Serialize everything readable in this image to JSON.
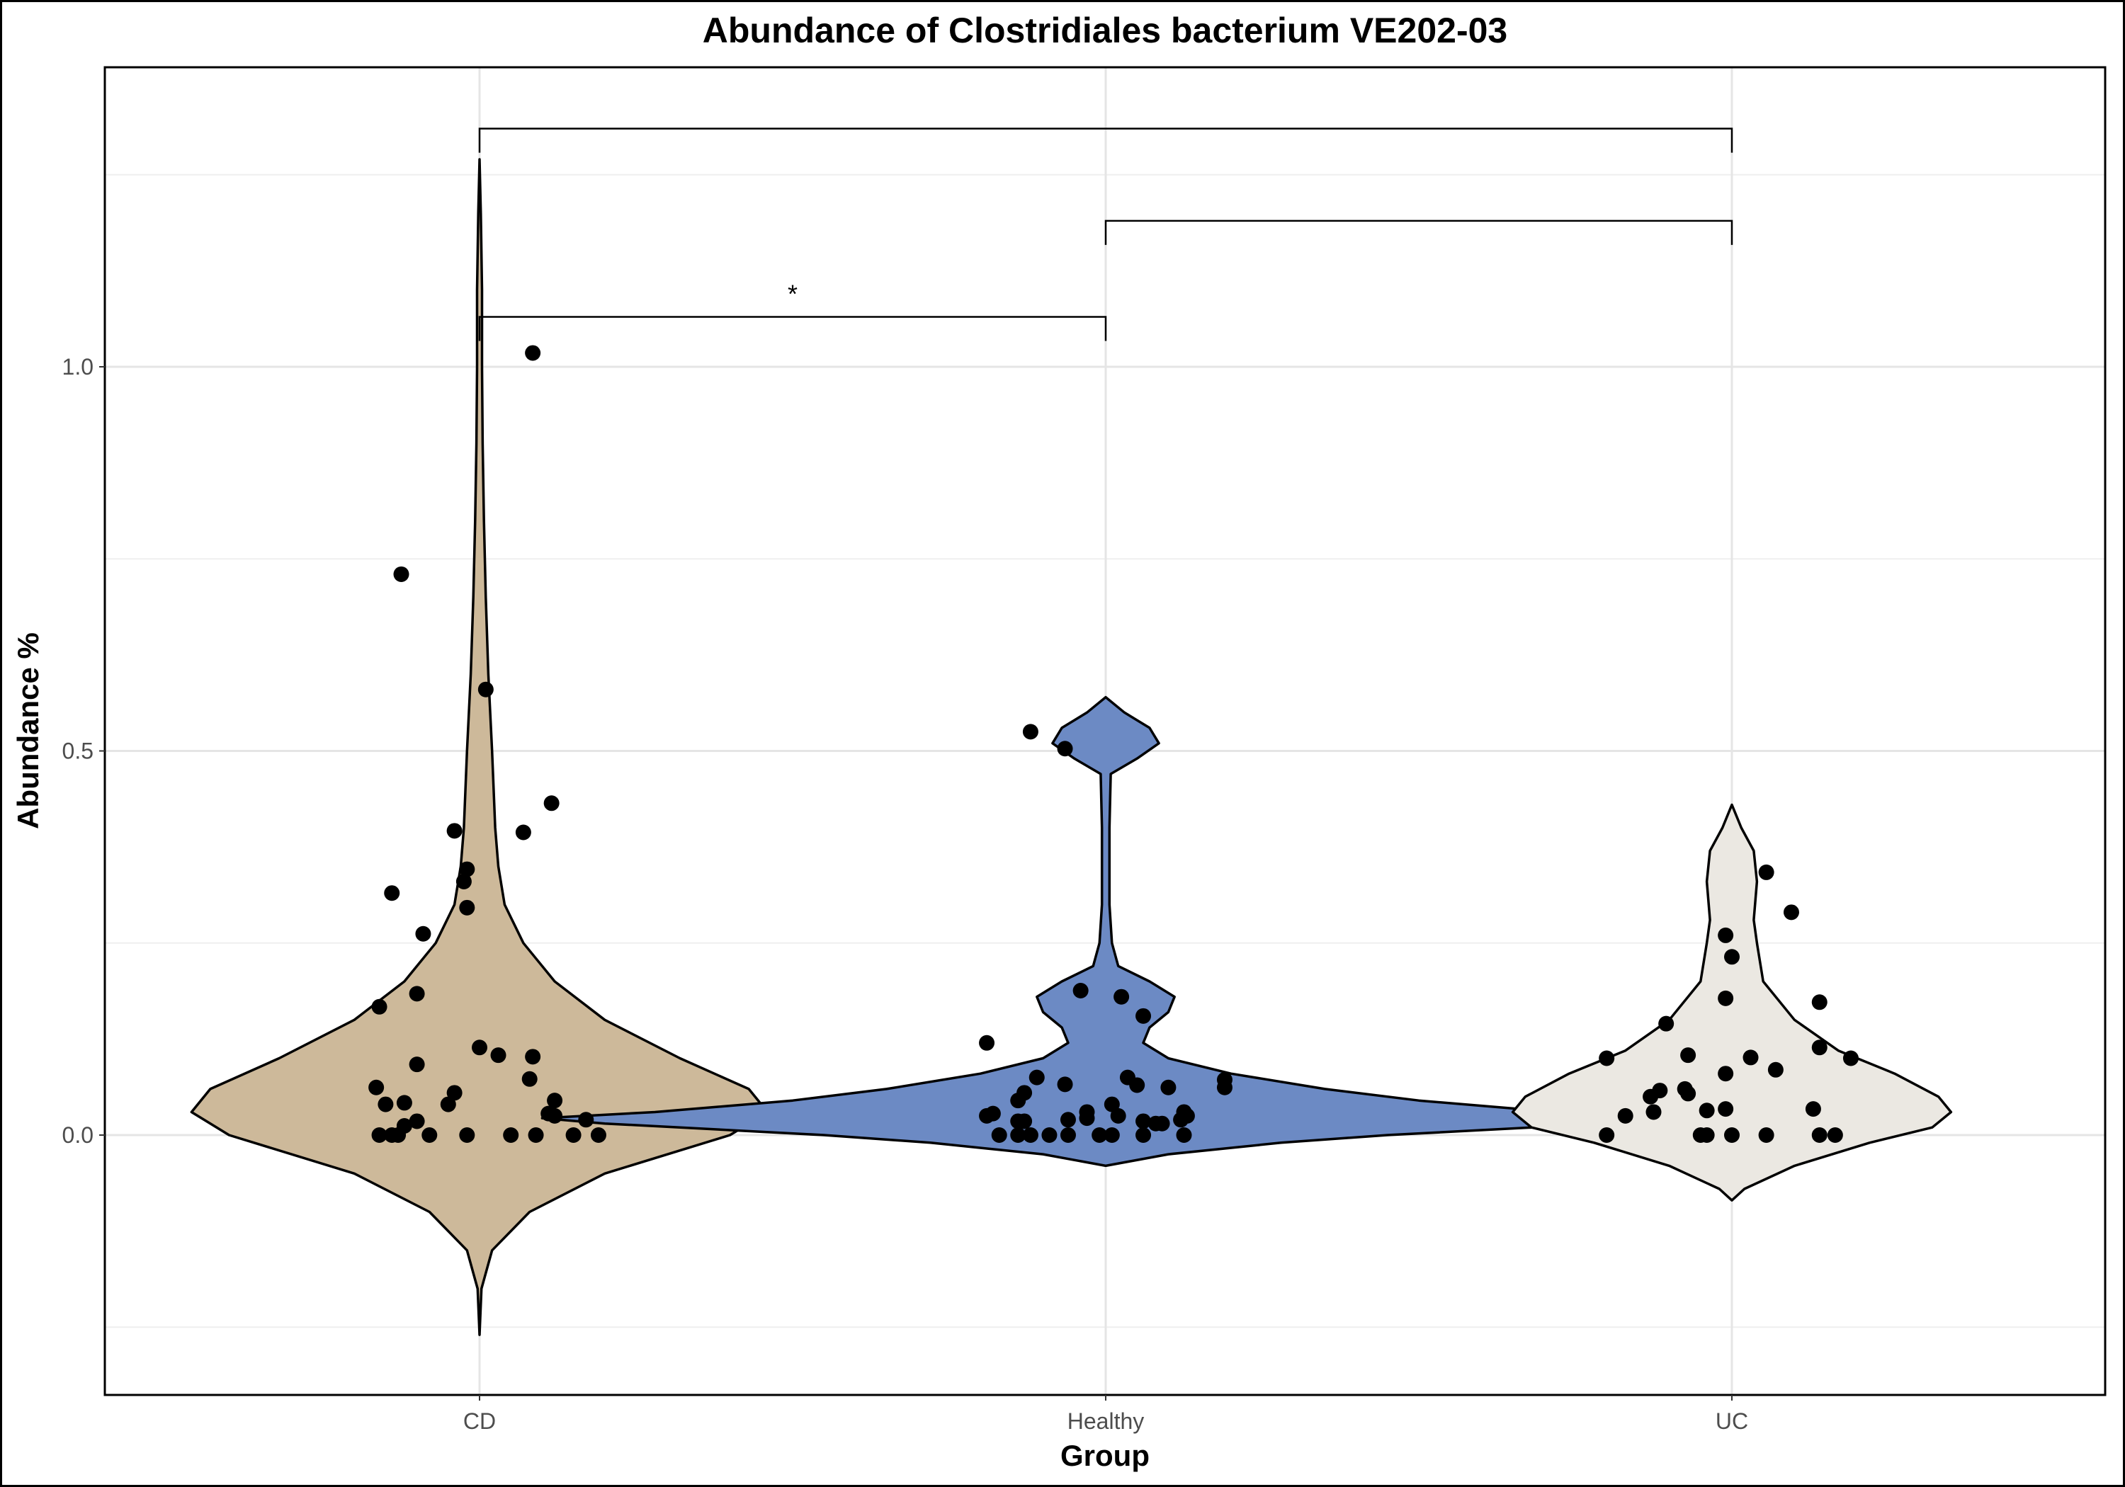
{
  "chart_data": {
    "type": "violin",
    "title": "Abundance of Clostridiales bacterium VE202-03",
    "xlabel": "Group",
    "ylabel": "Abundance %",
    "categories": [
      "CD",
      "Healthy",
      "UC"
    ],
    "ylim": [
      -0.33,
      1.43
    ],
    "y_ticks": [
      0.0,
      0.5,
      1.0
    ],
    "y_tick_labels": [
      "0.0",
      "0.5",
      "1.0"
    ],
    "grid": true,
    "legend": "none",
    "colors": {
      "CD": "#cdb99a",
      "Healthy": "#6c8ac4",
      "UC": "#ebe8e2",
      "outline": "#000000",
      "point": "#000000"
    },
    "violins": [
      {
        "group": "CD",
        "ymin": -0.26,
        "ymax": 1.27,
        "profile": [
          [
            -0.26,
            0.0
          ],
          [
            -0.2,
            0.003
          ],
          [
            -0.15,
            0.02
          ],
          [
            -0.1,
            0.08
          ],
          [
            -0.05,
            0.2
          ],
          [
            0.0,
            0.4
          ],
          [
            0.03,
            0.46
          ],
          [
            0.06,
            0.43
          ],
          [
            0.1,
            0.32
          ],
          [
            0.15,
            0.2
          ],
          [
            0.2,
            0.12
          ],
          [
            0.25,
            0.07
          ],
          [
            0.3,
            0.04
          ],
          [
            0.35,
            0.03
          ],
          [
            0.4,
            0.025
          ],
          [
            0.5,
            0.02
          ],
          [
            0.6,
            0.014
          ],
          [
            0.7,
            0.01
          ],
          [
            0.8,
            0.007
          ],
          [
            0.9,
            0.005
          ],
          [
            1.0,
            0.004
          ],
          [
            1.1,
            0.004
          ],
          [
            1.2,
            0.002
          ],
          [
            1.27,
            0.0
          ]
        ]
      },
      {
        "group": "Healthy",
        "ymin": -0.04,
        "ymax": 0.57,
        "profile": [
          [
            -0.04,
            0.0
          ],
          [
            -0.025,
            0.1
          ],
          [
            -0.01,
            0.28
          ],
          [
            0.0,
            0.45
          ],
          [
            0.015,
            0.8
          ],
          [
            0.022,
            0.9
          ],
          [
            0.03,
            0.72
          ],
          [
            0.045,
            0.5
          ],
          [
            0.06,
            0.35
          ],
          [
            0.08,
            0.2
          ],
          [
            0.1,
            0.1
          ],
          [
            0.12,
            0.06
          ],
          [
            0.14,
            0.07
          ],
          [
            0.16,
            0.1
          ],
          [
            0.18,
            0.11
          ],
          [
            0.2,
            0.07
          ],
          [
            0.22,
            0.02
          ],
          [
            0.25,
            0.01
          ],
          [
            0.3,
            0.006
          ],
          [
            0.4,
            0.006
          ],
          [
            0.47,
            0.008
          ],
          [
            0.49,
            0.05
          ],
          [
            0.51,
            0.085
          ],
          [
            0.53,
            0.07
          ],
          [
            0.55,
            0.03
          ],
          [
            0.57,
            0.0
          ]
        ]
      },
      {
        "group": "UC",
        "ymin": -0.085,
        "ymax": 0.43,
        "profile": [
          [
            -0.085,
            0.0
          ],
          [
            -0.07,
            0.02
          ],
          [
            -0.04,
            0.1
          ],
          [
            -0.01,
            0.22
          ],
          [
            0.01,
            0.32
          ],
          [
            0.03,
            0.35
          ],
          [
            0.05,
            0.33
          ],
          [
            0.08,
            0.26
          ],
          [
            0.11,
            0.17
          ],
          [
            0.15,
            0.1
          ],
          [
            0.2,
            0.05
          ],
          [
            0.25,
            0.04
          ],
          [
            0.28,
            0.035
          ],
          [
            0.33,
            0.04
          ],
          [
            0.37,
            0.035
          ],
          [
            0.4,
            0.015
          ],
          [
            0.43,
            0.0
          ]
        ]
      }
    ],
    "points": {
      "CD": [
        {
          "x": -0.16,
          "y": 0.0
        },
        {
          "x": -0.14,
          "y": 0.0
        },
        {
          "x": -0.13,
          "y": 0.0
        },
        {
          "x": -0.08,
          "y": 0.0
        },
        {
          "x": -0.02,
          "y": 0.0
        },
        {
          "x": 0.05,
          "y": 0.0
        },
        {
          "x": 0.09,
          "y": 0.0
        },
        {
          "x": 0.15,
          "y": 0.0
        },
        {
          "x": 0.19,
          "y": 0.0
        },
        {
          "x": -0.12,
          "y": 0.012
        },
        {
          "x": -0.1,
          "y": 0.018
        },
        {
          "x": 0.12,
          "y": 0.025
        },
        {
          "x": 0.17,
          "y": 0.02
        },
        {
          "x": 0.11,
          "y": 0.028
        },
        {
          "x": -0.15,
          "y": 0.04
        },
        {
          "x": -0.12,
          "y": 0.042
        },
        {
          "x": -0.05,
          "y": 0.04
        },
        {
          "x": 0.12,
          "y": 0.045
        },
        {
          "x": -0.165,
          "y": 0.062
        },
        {
          "x": -0.04,
          "y": 0.055
        },
        {
          "x": 0.08,
          "y": 0.073
        },
        {
          "x": -0.1,
          "y": 0.092
        },
        {
          "x": 0.0,
          "y": 0.114
        },
        {
          "x": 0.03,
          "y": 0.104
        },
        {
          "x": 0.085,
          "y": 0.102
        },
        {
          "x": -0.1,
          "y": 0.184
        },
        {
          "x": -0.16,
          "y": 0.167
        },
        {
          "x": -0.09,
          "y": 0.262
        },
        {
          "x": -0.14,
          "y": 0.315
        },
        {
          "x": -0.02,
          "y": 0.296
        },
        {
          "x": -0.025,
          "y": 0.33
        },
        {
          "x": -0.02,
          "y": 0.346
        },
        {
          "x": -0.04,
          "y": 0.396
        },
        {
          "x": 0.07,
          "y": 0.394
        },
        {
          "x": 0.115,
          "y": 0.432
        },
        {
          "x": 0.01,
          "y": 0.58
        },
        {
          "x": -0.125,
          "y": 0.73
        },
        {
          "x": 0.085,
          "y": 1.018
        }
      ],
      "Healthy": [
        {
          "x": -0.17,
          "y": 0.0
        },
        {
          "x": -0.14,
          "y": 0.0
        },
        {
          "x": -0.12,
          "y": 0.0
        },
        {
          "x": -0.09,
          "y": 0.0
        },
        {
          "x": -0.06,
          "y": 0.0
        },
        {
          "x": -0.01,
          "y": 0.0
        },
        {
          "x": 0.01,
          "y": 0.0
        },
        {
          "x": 0.06,
          "y": 0.0
        },
        {
          "x": 0.125,
          "y": 0.0
        },
        {
          "x": -0.19,
          "y": 0.025
        },
        {
          "x": -0.18,
          "y": 0.028
        },
        {
          "x": -0.14,
          "y": 0.018
        },
        {
          "x": -0.13,
          "y": 0.018
        },
        {
          "x": -0.06,
          "y": 0.02
        },
        {
          "x": -0.03,
          "y": 0.022
        },
        {
          "x": -0.03,
          "y": 0.03
        },
        {
          "x": 0.02,
          "y": 0.025
        },
        {
          "x": 0.06,
          "y": 0.018
        },
        {
          "x": 0.08,
          "y": 0.015
        },
        {
          "x": 0.09,
          "y": 0.015
        },
        {
          "x": 0.12,
          "y": 0.02
        },
        {
          "x": 0.125,
          "y": 0.03
        },
        {
          "x": 0.13,
          "y": 0.025
        },
        {
          "x": -0.14,
          "y": 0.045
        },
        {
          "x": -0.13,
          "y": 0.055
        },
        {
          "x": 0.01,
          "y": 0.04
        },
        {
          "x": -0.11,
          "y": 0.075
        },
        {
          "x": -0.065,
          "y": 0.066
        },
        {
          "x": 0.035,
          "y": 0.075
        },
        {
          "x": 0.05,
          "y": 0.065
        },
        {
          "x": 0.1,
          "y": 0.062
        },
        {
          "x": 0.19,
          "y": 0.072
        },
        {
          "x": 0.19,
          "y": 0.062
        },
        {
          "x": -0.19,
          "y": 0.12
        },
        {
          "x": -0.04,
          "y": 0.188
        },
        {
          "x": 0.025,
          "y": 0.18
        },
        {
          "x": 0.06,
          "y": 0.155
        },
        {
          "x": -0.065,
          "y": 0.503
        },
        {
          "x": -0.12,
          "y": 0.525
        }
      ],
      "UC": [
        {
          "x": -0.2,
          "y": 0.0
        },
        {
          "x": -0.05,
          "y": 0.0
        },
        {
          "x": -0.04,
          "y": 0.0
        },
        {
          "x": 0.0,
          "y": 0.0
        },
        {
          "x": 0.055,
          "y": 0.0
        },
        {
          "x": 0.14,
          "y": 0.0
        },
        {
          "x": 0.165,
          "y": 0.0
        },
        {
          "x": -0.17,
          "y": 0.025
        },
        {
          "x": -0.125,
          "y": 0.03
        },
        {
          "x": -0.04,
          "y": 0.032
        },
        {
          "x": -0.01,
          "y": 0.034
        },
        {
          "x": 0.13,
          "y": 0.034
        },
        {
          "x": -0.13,
          "y": 0.05
        },
        {
          "x": -0.115,
          "y": 0.058
        },
        {
          "x": -0.075,
          "y": 0.06
        },
        {
          "x": -0.07,
          "y": 0.054
        },
        {
          "x": -0.2,
          "y": 0.1
        },
        {
          "x": -0.07,
          "y": 0.104
        },
        {
          "x": -0.01,
          "y": 0.08
        },
        {
          "x": 0.03,
          "y": 0.101
        },
        {
          "x": 0.07,
          "y": 0.085
        },
        {
          "x": 0.14,
          "y": 0.114
        },
        {
          "x": 0.19,
          "y": 0.1
        },
        {
          "x": -0.105,
          "y": 0.145
        },
        {
          "x": -0.01,
          "y": 0.178
        },
        {
          "x": 0.14,
          "y": 0.173
        },
        {
          "x": -0.01,
          "y": 0.26
        },
        {
          "x": 0.0,
          "y": 0.232
        },
        {
          "x": 0.055,
          "y": 0.342
        },
        {
          "x": 0.095,
          "y": 0.29
        }
      ]
    },
    "comparisons": [
      {
        "from": "CD",
        "to": "Healthy",
        "y": 1.065,
        "label": "*"
      },
      {
        "from": "Healthy",
        "to": "UC",
        "y": 1.19,
        "label": ""
      },
      {
        "from": "CD",
        "to": "UC",
        "y": 1.31,
        "label": ""
      }
    ]
  }
}
